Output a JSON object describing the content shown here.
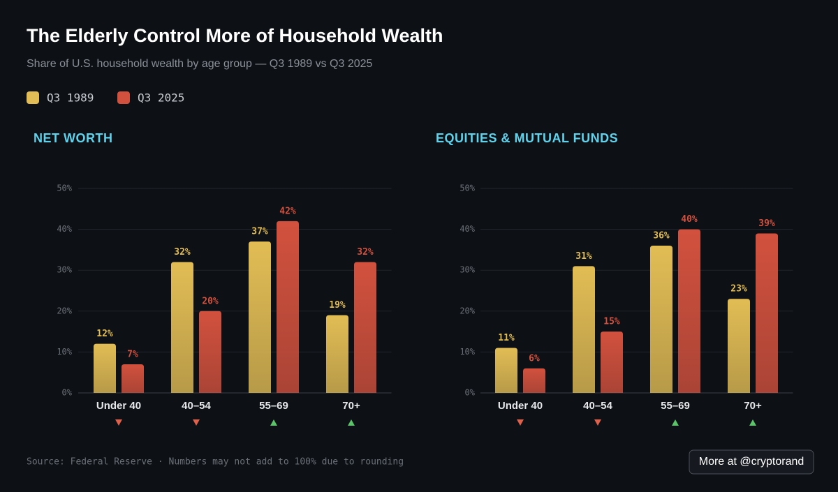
{
  "header": {
    "title": "The Elderly Control More of Household Wealth",
    "subtitle": "Share of U.S. household wealth by age group — Q3 1989 vs Q3 2025"
  },
  "chart_data": [
    {
      "type": "bar",
      "title": "NET WORTH",
      "categories": [
        "Under 40",
        "40–54",
        "55–69",
        "70+"
      ],
      "series": [
        {
          "name": "Q3 1989",
          "color": "#e2bd55",
          "values": [
            12,
            32,
            37,
            19
          ],
          "value_labels": [
            "12%",
            "32%",
            "37%",
            "19%"
          ]
        },
        {
          "name": "Q3 2025",
          "color": "#d2513e",
          "values": [
            7,
            20,
            42,
            32
          ],
          "value_labels": [
            "7%",
            "20%",
            "42%",
            "32%"
          ]
        }
      ],
      "ylim": [
        0,
        50
      ],
      "yticks": [
        {
          "value": 0,
          "label": "0%"
        },
        {
          "value": 10,
          "label": "10%"
        },
        {
          "value": 20,
          "label": "20%"
        },
        {
          "value": 30,
          "label": "30%"
        },
        {
          "value": 40,
          "label": "40%"
        },
        {
          "value": 50,
          "label": "50%"
        }
      ],
      "grid": true
    },
    {
      "type": "bar",
      "title": "EQUITIES & MUTUAL FUNDS",
      "categories": [
        "Under 40",
        "40–54",
        "55–69",
        "70+"
      ],
      "series": [
        {
          "color": "#e2bd55",
          "values": [
            11,
            31,
            36,
            23
          ],
          "value_labels": [
            "11%",
            "31%",
            "36%",
            "23%"
          ]
        },
        {
          "color": "#d2513e",
          "values": [
            6,
            15,
            40,
            39
          ],
          "value_labels": [
            "6%",
            "15%",
            "40%",
            "39%"
          ]
        }
      ],
      "ylim": [
        0,
        50
      ],
      "yticks": [
        {
          "value": 0,
          "label": "0%"
        },
        {
          "value": 10,
          "label": "10%"
        },
        {
          "value": 20,
          "label": "20%"
        },
        {
          "value": 30,
          "label": "30%"
        },
        {
          "value": 40,
          "label": "40%"
        },
        {
          "value": 50,
          "label": "50%"
        }
      ],
      "grid": true
    }
  ],
  "footer": {
    "source": "Source: Federal Reserve · Numbers may not add to 100% due to rounding",
    "button": "More at @cryptorand"
  }
}
